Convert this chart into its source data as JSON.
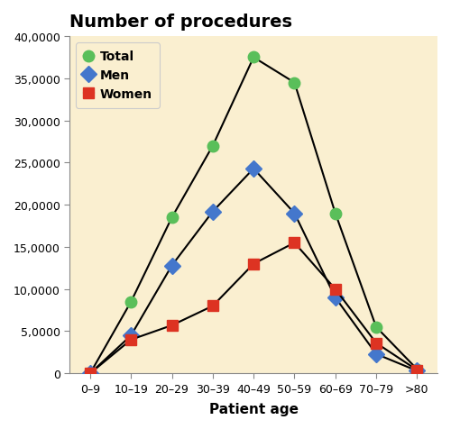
{
  "age_groups": [
    "0–9",
    "10–19",
    "20–29",
    "30–39",
    "40–49",
    "50–59",
    "60–69",
    "70–79",
    ">80"
  ],
  "total": [
    0,
    8500,
    18500,
    27000,
    37500,
    34500,
    19000,
    5500,
    500
  ],
  "men": [
    0,
    4500,
    12800,
    19200,
    24300,
    19000,
    9000,
    2300,
    300
  ],
  "women": [
    0,
    4000,
    5700,
    8000,
    13000,
    15500,
    10000,
    3600,
    400
  ],
  "color_total": "#5abf5a",
  "color_men": "#4477cc",
  "color_women": "#dd3322",
  "line_color": "#000000",
  "bg_color": "#faefd0",
  "title": "Number of procedures",
  "xlabel": "Patient age",
  "ylim": [
    0,
    40000
  ],
  "ytick_step": 5000,
  "ytick_labels": [
    "0",
    "5,0000",
    "10,0000",
    "15,0000",
    "20,0000",
    "25,0000",
    "30,0000",
    "35,0000",
    "40,0000"
  ],
  "legend_labels": [
    "Total",
    "Men",
    "Women"
  ],
  "marker_total": "o",
  "marker_men": "D",
  "marker_women": "s",
  "title_fontsize": 14,
  "axis_label_fontsize": 11,
  "tick_fontsize": 9,
  "legend_fontsize": 10
}
